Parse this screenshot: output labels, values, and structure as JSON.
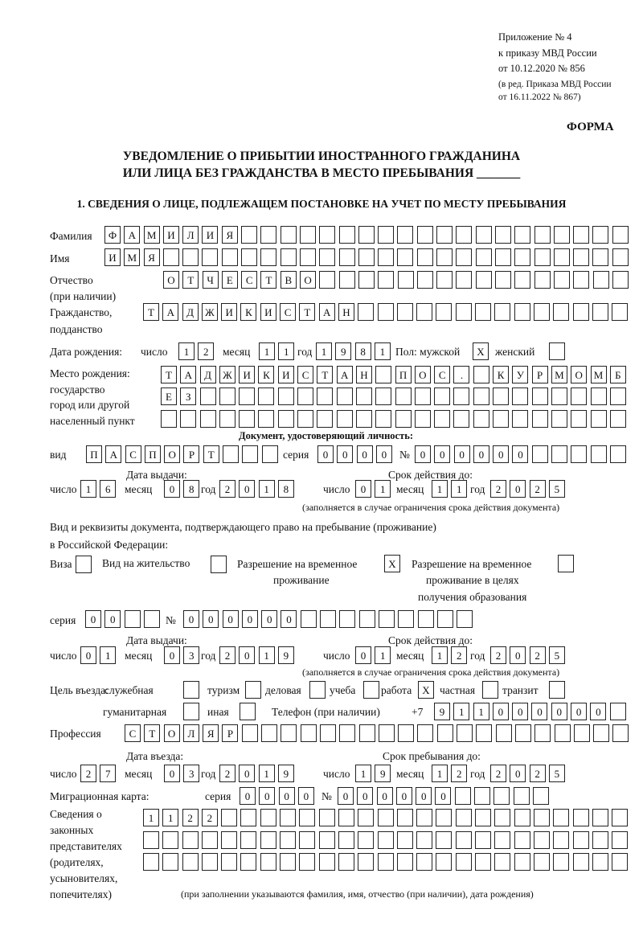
{
  "header": {
    "line1": "Приложение № 4",
    "line2": "к приказу МВД России",
    "line3": "от 10.12.2020 № 856",
    "line4": "(в ред. Приказа МВД России",
    "line5": "от 16.11.2022 № 867)",
    "form_label": "ФОРМА"
  },
  "title": {
    "line1": "УВЕДОМЛЕНИЕ О ПРИБЫТИИ ИНОСТРАННОГО ГРАЖДАНИНА",
    "line2": "ИЛИ ЛИЦА БЕЗ ГРАЖДАНСТВА В МЕСТО ПРЕБЫВАНИЯ _______"
  },
  "section1": {
    "heading": "1. СВЕДЕНИЯ О ЛИЦЕ, ПОДЛЕЖАЩЕМ ПОСТАНОВКЕ НА УЧЕТ ПО МЕСТУ ПРЕБЫВАНИЯ",
    "surname": {
      "label": "Фамилия",
      "cells": [
        "Ф",
        "А",
        "М",
        "И",
        "Л",
        "И",
        "Я"
      ],
      "total": 27
    },
    "name": {
      "label": "Имя",
      "cells": [
        "И",
        "М",
        "Я"
      ],
      "total": 27
    },
    "patronymic": {
      "label": "Отчество",
      "label2": "(при наличии)",
      "cells": [
        "О",
        "Т",
        "Ч",
        "Е",
        "С",
        "Т",
        "В",
        "О"
      ],
      "total": 24
    },
    "citizenship": {
      "label": "Гражданство,",
      "label2": "подданство",
      "cells": [
        "Т",
        "А",
        "Д",
        "Ж",
        "И",
        "К",
        "И",
        "С",
        "Т",
        "А",
        "Н"
      ],
      "total": 25
    },
    "birth_date": {
      "label": "Дата рождения:",
      "day_label": "число",
      "day": [
        "1",
        "2"
      ],
      "month_label": "месяц",
      "month": [
        "1",
        "1"
      ],
      "year_label": "год",
      "year": [
        "1",
        "9",
        "8",
        "1"
      ],
      "sex_label": "Пол: мужской",
      "male": "X",
      "female_label": "женский",
      "female": ""
    },
    "birth_place": {
      "label1": "Место рождения:",
      "label2": "государство",
      "label3": "город или другой",
      "label4": "населенный пункт",
      "row1": [
        "Т",
        "А",
        "Д",
        "Ж",
        "И",
        "К",
        "И",
        "С",
        "Т",
        "А",
        "Н",
        "",
        "П",
        "О",
        "С",
        ".",
        "",
        "К",
        "У",
        "Р",
        "М",
        "О",
        "М",
        "Б"
      ],
      "row2": [
        "Е",
        "З"
      ],
      "row3": [],
      "total": 24
    },
    "identity_doc": {
      "heading": "Документ, удостоверяющий личность:",
      "type_label": "вид",
      "type": [
        "П",
        "А",
        "С",
        "П",
        "О",
        "Р",
        "Т",
        "",
        "",
        ""
      ],
      "series_label": "серия",
      "series": [
        "0",
        "0",
        "0",
        "0"
      ],
      "number_label": "№",
      "number": [
        "0",
        "0",
        "0",
        "0",
        "0",
        "0",
        "",
        "",
        "",
        "",
        ""
      ],
      "issue_label": "Дата выдачи:",
      "valid_label": "Срок действия до:",
      "issue": {
        "day": [
          "1",
          "6"
        ],
        "month": [
          "0",
          "8"
        ],
        "year": [
          "2",
          "0",
          "1",
          "8"
        ]
      },
      "valid": {
        "day": [
          "0",
          "1"
        ],
        "month": [
          "1",
          "1"
        ],
        "year": [
          "2",
          "0",
          "2",
          "5"
        ]
      },
      "note": "(заполняется в случае ограничения срока действия документа)"
    },
    "residence_doc": {
      "heading1": "Вид и реквизиты документа, подтверждающего право на пребывание (проживание)",
      "heading2": "в Российской Федерации:",
      "visa_label": "Виза",
      "visa": "",
      "permit_label": "Вид на жительство",
      "permit": "",
      "temp_label1": "Разрешение на временное",
      "temp_label2": "проживание",
      "temp": "X",
      "edu_label1": "Разрешение на временное",
      "edu_label2": "проживание в целях",
      "edu_label3": "получения образования",
      "edu": "",
      "series_label": "серия",
      "series": [
        "0",
        "0",
        "",
        ""
      ],
      "number_label": "№",
      "number": [
        "0",
        "0",
        "0",
        "0",
        "0",
        "0",
        "",
        "",
        "",
        "",
        "",
        "",
        "",
        "",
        ""
      ],
      "issue_label": "Дата выдачи:",
      "valid_label": "Срок действия до:",
      "issue": {
        "day": [
          "0",
          "1"
        ],
        "month": [
          "0",
          "3"
        ],
        "year": [
          "2",
          "0",
          "1",
          "9"
        ]
      },
      "valid": {
        "day": [
          "0",
          "1"
        ],
        "month": [
          "1",
          "2"
        ],
        "year": [
          "2",
          "0",
          "2",
          "5"
        ]
      },
      "note": "(заполняется в случае ограничения срока действия документа)"
    },
    "purpose": {
      "label": "Цель въезда:",
      "options": [
        {
          "label": "служебная",
          "value": ""
        },
        {
          "label": "туризм",
          "value": ""
        },
        {
          "label": "деловая",
          "value": ""
        },
        {
          "label": "учеба",
          "value": ""
        },
        {
          "label": "работа",
          "value": "X"
        },
        {
          "label": "частная",
          "value": ""
        },
        {
          "label": "транзит",
          "value": ""
        },
        {
          "label": "гуманитарная",
          "value": ""
        },
        {
          "label": "иная",
          "value": ""
        }
      ]
    },
    "phone": {
      "label": "Телефон (при наличии)",
      "prefix": "+7",
      "cells": [
        "9",
        "1",
        "1",
        "0",
        "0",
        "0",
        "0",
        "0",
        "0",
        ""
      ]
    },
    "profession": {
      "label": "Профессия",
      "cells": [
        "С",
        "Т",
        "О",
        "Л",
        "Я",
        "Р"
      ],
      "total": 26
    },
    "entry": {
      "entry_label": "Дата въезда:",
      "stay_label": "Срок пребывания до:",
      "entry": {
        "day": [
          "2",
          "7"
        ],
        "month": [
          "0",
          "3"
        ],
        "year": [
          "2",
          "0",
          "1",
          "9"
        ]
      },
      "stay": {
        "day": [
          "1",
          "9"
        ],
        "month": [
          "1",
          "2"
        ],
        "year": [
          "2",
          "0",
          "2",
          "5"
        ]
      }
    },
    "date_labels": {
      "day": "число",
      "month": "месяц",
      "year": "год"
    },
    "migration_card": {
      "label": "Миграционная карта:",
      "series_label": "серия",
      "series": [
        "0",
        "0",
        "0",
        "0"
      ],
      "number_label": "№",
      "number": [
        "0",
        "0",
        "0",
        "0",
        "0",
        "0",
        "",
        "",
        "",
        "",
        ""
      ]
    },
    "representatives": {
      "label1": "Сведения о",
      "label2": "законных",
      "label3": "представителях",
      "label4": "(родителях,",
      "label5": "усыновителях,",
      "label6": "попечителях)",
      "row1": [
        "1",
        "1",
        "2",
        "2"
      ],
      "row2": [],
      "row3": [],
      "total": 25,
      "note": "(при заполнении указываются фамилия, имя, отчество (при наличии), дата рождения)"
    }
  }
}
